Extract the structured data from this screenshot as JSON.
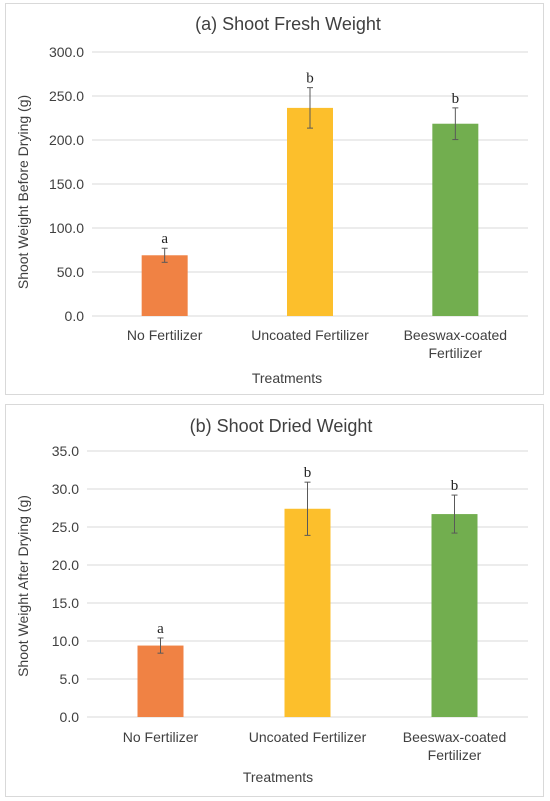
{
  "chart_data": [
    {
      "type": "bar",
      "title": "(a) Shoot Fresh Weight",
      "xlabel": "Treatments",
      "ylabel": "Shoot Weight Before Drying (g)",
      "ylim": [
        0,
        300
      ],
      "ytick_step": 50,
      "ytick_labels": [
        "0.0",
        "50.0",
        "100.0",
        "150.0",
        "200.0",
        "250.0",
        "300.0"
      ],
      "categories": [
        "No Fertilizer",
        "Uncoated Fertilizer",
        "Beeswax-coated Fertilizer"
      ],
      "category_lines": [
        [
          "No Fertilizer"
        ],
        [
          "Uncoated Fertilizer"
        ],
        [
          "Beeswax-coated",
          "Fertilizer"
        ]
      ],
      "values": [
        69,
        236.5,
        218.5
      ],
      "errors": [
        8,
        23,
        18
      ],
      "significance": [
        "a",
        "b",
        "b"
      ],
      "colors": [
        "#F08244",
        "#FCBF2C",
        "#72AE4F"
      ],
      "grid": true,
      "legend": "none"
    },
    {
      "type": "bar",
      "title": "(b) Shoot Dried Weight",
      "xlabel": "Treatments",
      "ylabel": "Shoot Weight After Drying (g)",
      "ylim": [
        0,
        35
      ],
      "ytick_step": 5,
      "ytick_labels": [
        "0.0",
        "5.0",
        "10.0",
        "15.0",
        "20.0",
        "25.0",
        "30.0",
        "35.0"
      ],
      "categories": [
        "No Fertilizer",
        "Uncoated Fertilizer",
        "Beeswax-coated Fertilizer"
      ],
      "category_lines": [
        [
          "No Fertilizer"
        ],
        [
          "Uncoated Fertilizer"
        ],
        [
          "Beeswax-coated",
          "Fertilizer"
        ]
      ],
      "values": [
        9.4,
        27.4,
        26.7
      ],
      "errors": [
        1.0,
        3.5,
        2.5
      ],
      "significance": [
        "a",
        "b",
        "b"
      ],
      "colors": [
        "#F08244",
        "#FCBF2C",
        "#72AE4F"
      ],
      "grid": true,
      "legend": "none"
    }
  ],
  "style": {
    "gridline_color": "#d9d9d9",
    "errorbar_color": "#595959",
    "text_color": "#404040"
  }
}
